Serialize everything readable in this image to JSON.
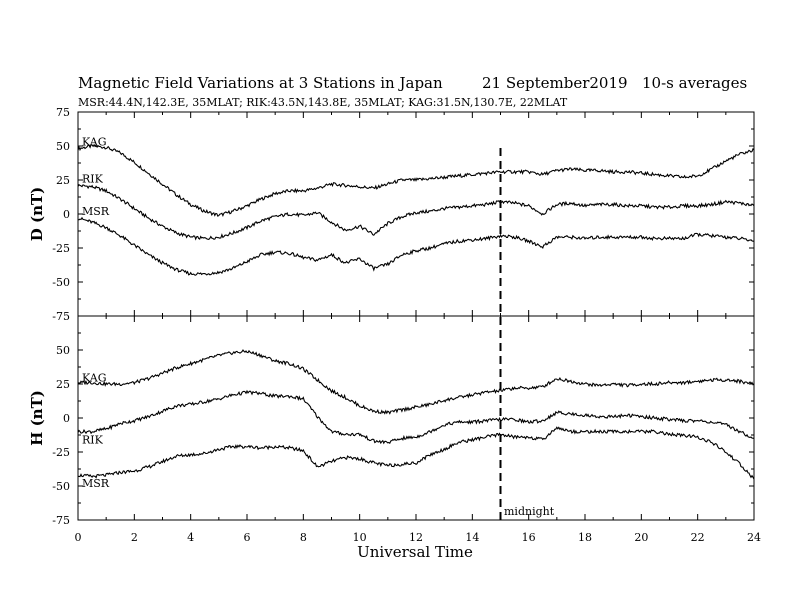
{
  "header": {
    "title": "Magnetic Field Variations at 3 Stations in Japan",
    "date": "21 September2019",
    "averaging": "10-s averages",
    "stations": "MSR:44.4N,142.3E, 35MLAT;  RIK:43.5N,143.8E, 35MLAT;  KAG:31.5N,130.7E, 22MLAT"
  },
  "chart_data": [
    {
      "type": "line",
      "ylabel": "D (nT)",
      "ylim": [
        -75,
        75
      ],
      "yticks": [
        75,
        50,
        25,
        0,
        -25,
        -50,
        -75
      ],
      "xlim": [
        0,
        24
      ],
      "series": [
        {
          "name": "KAG",
          "x": [
            0,
            0.5,
            1,
            1.5,
            2,
            2.5,
            3,
            3.5,
            4,
            4.5,
            5,
            5.5,
            6,
            6.5,
            7,
            7.5,
            8,
            8.5,
            9,
            9.5,
            10,
            10.5,
            11,
            11.5,
            12,
            12.5,
            13,
            13.5,
            14,
            14.5,
            15,
            15.5,
            16,
            16.5,
            17,
            17.5,
            18,
            18.5,
            19,
            19.5,
            20,
            20.5,
            21,
            21.5,
            22,
            22.5,
            23,
            23.5,
            24
          ],
          "values": [
            48,
            50,
            49,
            45,
            38,
            30,
            22,
            14,
            7,
            2,
            -1,
            2,
            6,
            11,
            15,
            17,
            17,
            19,
            22,
            21,
            20,
            19,
            22,
            25,
            25,
            26,
            27,
            28,
            29,
            30,
            31,
            31,
            31,
            29,
            32,
            33,
            32,
            32,
            31,
            31,
            30,
            29,
            28,
            27,
            28,
            33,
            39,
            44,
            47
          ]
        },
        {
          "name": "RIK",
          "x": [
            0,
            0.5,
            1,
            1.5,
            2,
            2.5,
            3,
            3.5,
            4,
            4.5,
            5,
            5.5,
            6,
            6.5,
            7,
            7.5,
            8,
            8.5,
            9,
            9.5,
            10,
            10.5,
            11,
            11.5,
            12,
            12.5,
            13,
            13.5,
            14,
            14.5,
            15,
            15.5,
            16,
            16.5,
            17,
            17.5,
            18,
            18.5,
            19,
            19.5,
            20,
            20.5,
            21,
            21.5,
            22,
            22.5,
            23,
            23.5,
            24
          ],
          "values": [
            21,
            20,
            17,
            11,
            4,
            -3,
            -9,
            -14,
            -17,
            -18,
            -17,
            -14,
            -10,
            -5,
            -2,
            0,
            -1,
            1,
            -6,
            -12,
            -9,
            -15,
            -7,
            -2,
            1,
            2,
            4,
            5,
            6,
            7,
            9,
            8,
            6,
            0,
            7,
            8,
            6,
            7,
            7,
            6,
            6,
            5,
            5,
            6,
            6,
            7,
            9,
            8,
            6
          ]
        },
        {
          "name": "MSR",
          "x": [
            0,
            0.5,
            1,
            1.5,
            2,
            2.5,
            3,
            3.5,
            4,
            4.5,
            5,
            5.5,
            6,
            6.5,
            7,
            7.5,
            8,
            8.5,
            9,
            9.5,
            10,
            10.5,
            11,
            11.5,
            12,
            12.5,
            13,
            13.5,
            14,
            14.5,
            15,
            15.5,
            16,
            16.5,
            17,
            17.5,
            18,
            18.5,
            19,
            19.5,
            20,
            20.5,
            21,
            21.5,
            22,
            22.5,
            23,
            23.5,
            24
          ],
          "values": [
            -3,
            -6,
            -10,
            -16,
            -23,
            -30,
            -36,
            -41,
            -44,
            -44,
            -43,
            -40,
            -35,
            -30,
            -28,
            -29,
            -32,
            -34,
            -30,
            -36,
            -33,
            -40,
            -37,
            -30,
            -27,
            -25,
            -22,
            -20,
            -19,
            -18,
            -16,
            -17,
            -20,
            -24,
            -17,
            -17,
            -18,
            -17,
            -17,
            -17,
            -17,
            -18,
            -18,
            -18,
            -15,
            -16,
            -17,
            -18,
            -20
          ]
        }
      ]
    },
    {
      "type": "line",
      "ylabel": "H (nT)",
      "ylim": [
        -75,
        75
      ],
      "yticks": [
        50,
        25,
        0,
        -25,
        -50,
        -75
      ],
      "xlim": [
        0,
        24
      ],
      "xlabel": "Universal Time",
      "xticks": [
        0,
        2,
        4,
        6,
        8,
        10,
        12,
        14,
        16,
        18,
        20,
        22,
        24
      ],
      "series": [
        {
          "name": "KAG",
          "x": [
            0,
            0.5,
            1,
            1.5,
            2,
            2.5,
            3,
            3.5,
            4,
            4.5,
            5,
            5.5,
            6,
            6.5,
            7,
            7.5,
            8,
            8.5,
            9,
            9.5,
            10,
            10.5,
            11,
            11.5,
            12,
            12.5,
            13,
            13.5,
            14,
            14.5,
            15,
            15.5,
            16,
            16.5,
            17,
            17.5,
            18,
            18.5,
            19,
            19.5,
            20,
            20.5,
            21,
            21.5,
            22,
            22.5,
            23,
            23.5,
            24
          ],
          "values": [
            26,
            26,
            25,
            25,
            26,
            29,
            33,
            37,
            40,
            43,
            46,
            48,
            49,
            46,
            42,
            40,
            36,
            28,
            20,
            15,
            9,
            5,
            4,
            6,
            8,
            10,
            13,
            15,
            17,
            19,
            20,
            22,
            22,
            23,
            29,
            27,
            25,
            24,
            25,
            24,
            25,
            25,
            26,
            26,
            27,
            28,
            28,
            27,
            25
          ]
        },
        {
          "name": "RIK",
          "x": [
            0,
            0.5,
            1,
            1.5,
            2,
            2.5,
            3,
            3.5,
            4,
            4.5,
            5,
            5.5,
            6,
            6.5,
            7,
            7.5,
            8,
            8.5,
            9,
            9.5,
            10,
            10.5,
            11,
            11.5,
            12,
            12.5,
            13,
            13.5,
            14,
            14.5,
            15,
            15.5,
            16,
            16.5,
            17,
            17.5,
            18,
            18.5,
            19,
            19.5,
            20,
            20.5,
            21,
            21.5,
            22,
            22.5,
            23,
            23.5,
            24
          ],
          "values": [
            -10,
            -10,
            -8,
            -4,
            -2,
            1,
            5,
            9,
            10,
            12,
            14,
            17,
            19,
            18,
            16,
            16,
            14,
            1,
            -10,
            -12,
            -12,
            -17,
            -18,
            -15,
            -14,
            -10,
            -5,
            -3,
            -3,
            -2,
            -1,
            -1,
            -3,
            -2,
            4,
            3,
            2,
            1,
            1,
            2,
            1,
            0,
            -1,
            -2,
            -2,
            -3,
            -5,
            -10,
            -15
          ]
        },
        {
          "name": "MSR",
          "x": [
            0,
            0.5,
            1,
            1.5,
            2,
            2.5,
            3,
            3.5,
            4,
            4.5,
            5,
            5.5,
            6,
            6.5,
            7,
            7.5,
            8,
            8.5,
            9,
            9.5,
            10,
            10.5,
            11,
            11.5,
            12,
            12.5,
            13,
            13.5,
            14,
            14.5,
            15,
            15.5,
            16,
            16.5,
            17,
            17.5,
            18,
            18.5,
            19,
            19.5,
            20,
            20.5,
            21,
            21.5,
            22,
            22.5,
            23,
            23.5,
            24
          ],
          "values": [
            -42,
            -43,
            -42,
            -40,
            -39,
            -36,
            -32,
            -28,
            -27,
            -26,
            -23,
            -21,
            -21,
            -22,
            -21,
            -22,
            -24,
            -36,
            -32,
            -29,
            -30,
            -33,
            -35,
            -34,
            -33,
            -27,
            -23,
            -18,
            -16,
            -14,
            -12,
            -14,
            -14,
            -16,
            -7,
            -10,
            -10,
            -10,
            -10,
            -10,
            -10,
            -10,
            -12,
            -13,
            -14,
            -18,
            -25,
            -34,
            -45
          ]
        }
      ]
    }
  ],
  "marker": {
    "x": 15,
    "label": "midnight"
  }
}
